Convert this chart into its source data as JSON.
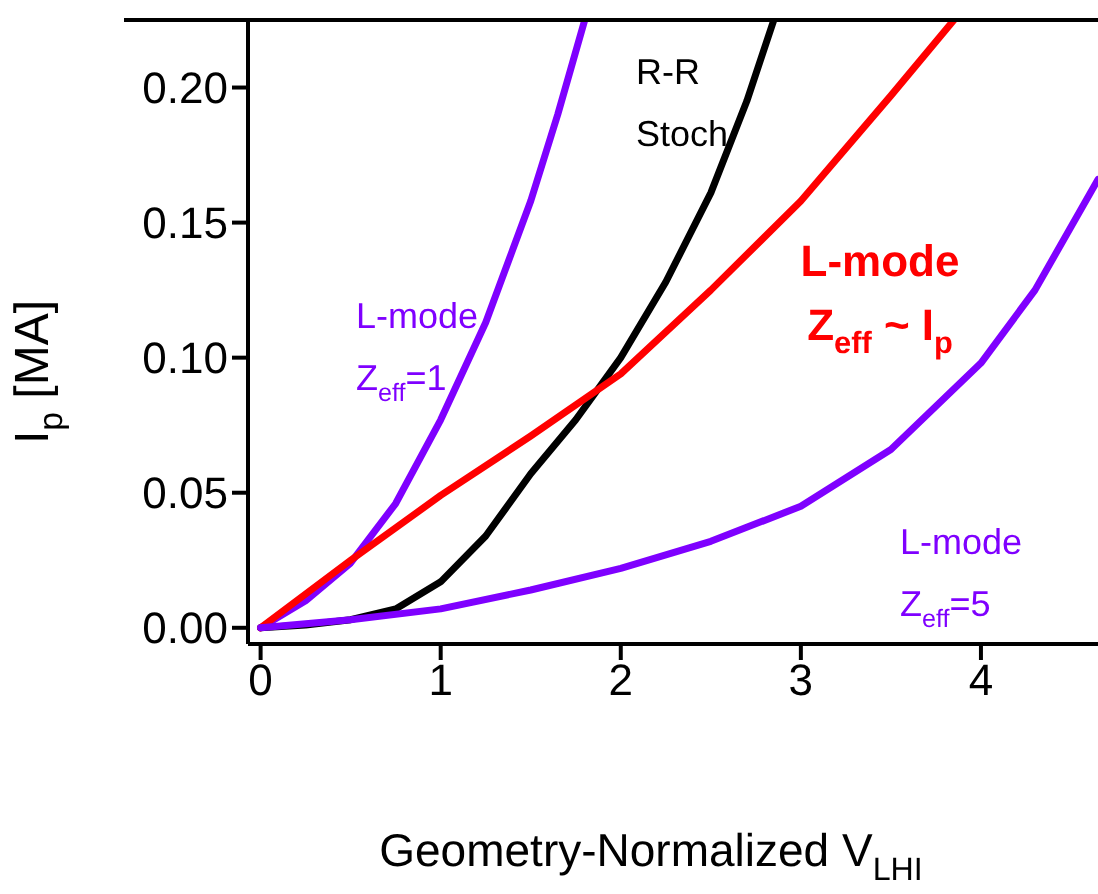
{
  "chart_data": {
    "type": "line",
    "xlabel": "Geometry-Normalized V$_{LHI}$",
    "ylabel": "I$_{p}$ [MA]",
    "xlim": [
      -0.07,
      4.65
    ],
    "ylim": [
      -0.006,
      0.225
    ],
    "xticks": [
      0,
      1,
      2,
      3,
      4
    ],
    "yticks": [
      {
        "value": 0,
        "label": "0.00"
      },
      {
        "value": 0.05,
        "label": "0.05"
      },
      {
        "value": 0.1,
        "label": "0.10"
      },
      {
        "value": 0.15,
        "label": "0.15"
      },
      {
        "value": 0.2,
        "label": "0.20"
      }
    ],
    "marker": "none",
    "line_style": "solid",
    "series": [
      {
        "name": "L-mode\nZ$_{eff}$=1",
        "color": "#7f00ff",
        "x": [
          0,
          0.25,
          0.5,
          0.75,
          1,
          1.25,
          1.5,
          1.65,
          1.8
        ],
        "values": [
          0,
          0.01,
          0.024,
          0.046,
          0.077,
          0.113,
          0.158,
          0.19,
          0.225
        ]
      },
      {
        "name": "R-R\nStoch",
        "color": "#000000",
        "x": [
          0,
          0.25,
          0.5,
          0.75,
          1,
          1.25,
          1.5,
          1.75,
          2,
          2.25,
          2.5,
          2.7,
          2.85
        ],
        "values": [
          0,
          0.001,
          0.003,
          0.007,
          0.017,
          0.034,
          0.057,
          0.077,
          0.1,
          0.128,
          0.161,
          0.195,
          0.225
        ]
      },
      {
        "name": "L-mode\nZ$_{eff}$ ~ I$_{p}$",
        "color": "#ff0000",
        "x": [
          0,
          0.5,
          1,
          1.5,
          2,
          2.5,
          3,
          3.5,
          3.85
        ],
        "values": [
          0,
          0.025,
          0.049,
          0.071,
          0.094,
          0.125,
          0.158,
          0.197,
          0.225
        ]
      },
      {
        "name": "L-mode\nZ$_{eff}$=5",
        "color": "#7f00ff",
        "x": [
          0,
          0.5,
          1,
          1.5,
          2,
          2.5,
          3,
          3.5,
          4,
          4.3,
          4.65
        ],
        "values": [
          0,
          0.003,
          0.007,
          0.014,
          0.022,
          0.032,
          0.045,
          0.066,
          0.098,
          0.125,
          0.166
        ]
      }
    ]
  }
}
